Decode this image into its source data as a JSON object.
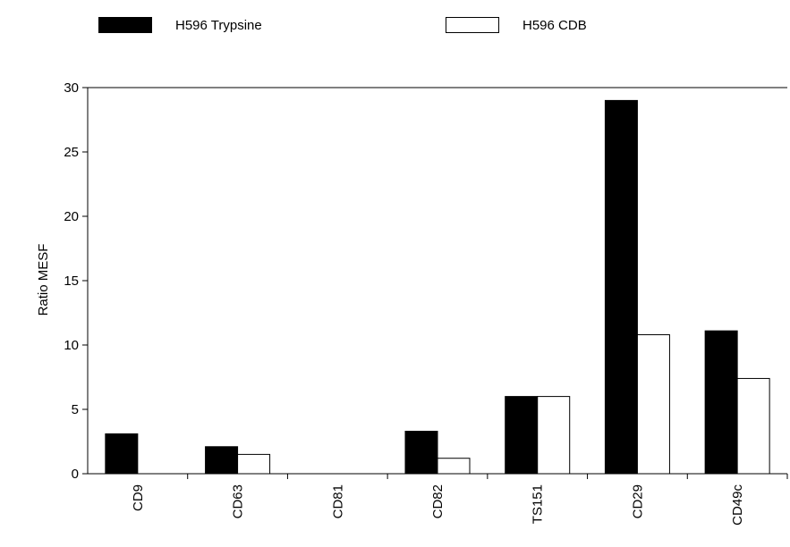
{
  "chart_data": {
    "type": "bar",
    "categories": [
      "CD9",
      "CD63",
      "CD81",
      "CD82",
      "TS151",
      "CD29",
      "CD49c"
    ],
    "series": [
      {
        "name": "H596 Trypsine",
        "color": "#000000",
        "values": [
          3.1,
          2.1,
          0,
          3.3,
          6.0,
          29.0,
          11.1
        ]
      },
      {
        "name": "H596 CDB",
        "color": "#ffffff",
        "values": [
          0,
          1.5,
          0,
          1.2,
          6.0,
          10.8,
          7.4
        ]
      }
    ],
    "ylabel": "Ratio MESF",
    "ylim": [
      0,
      30
    ],
    "yticks": [
      0,
      5,
      10,
      15,
      20,
      25,
      30
    ],
    "grid": false,
    "legend_position": "top"
  }
}
